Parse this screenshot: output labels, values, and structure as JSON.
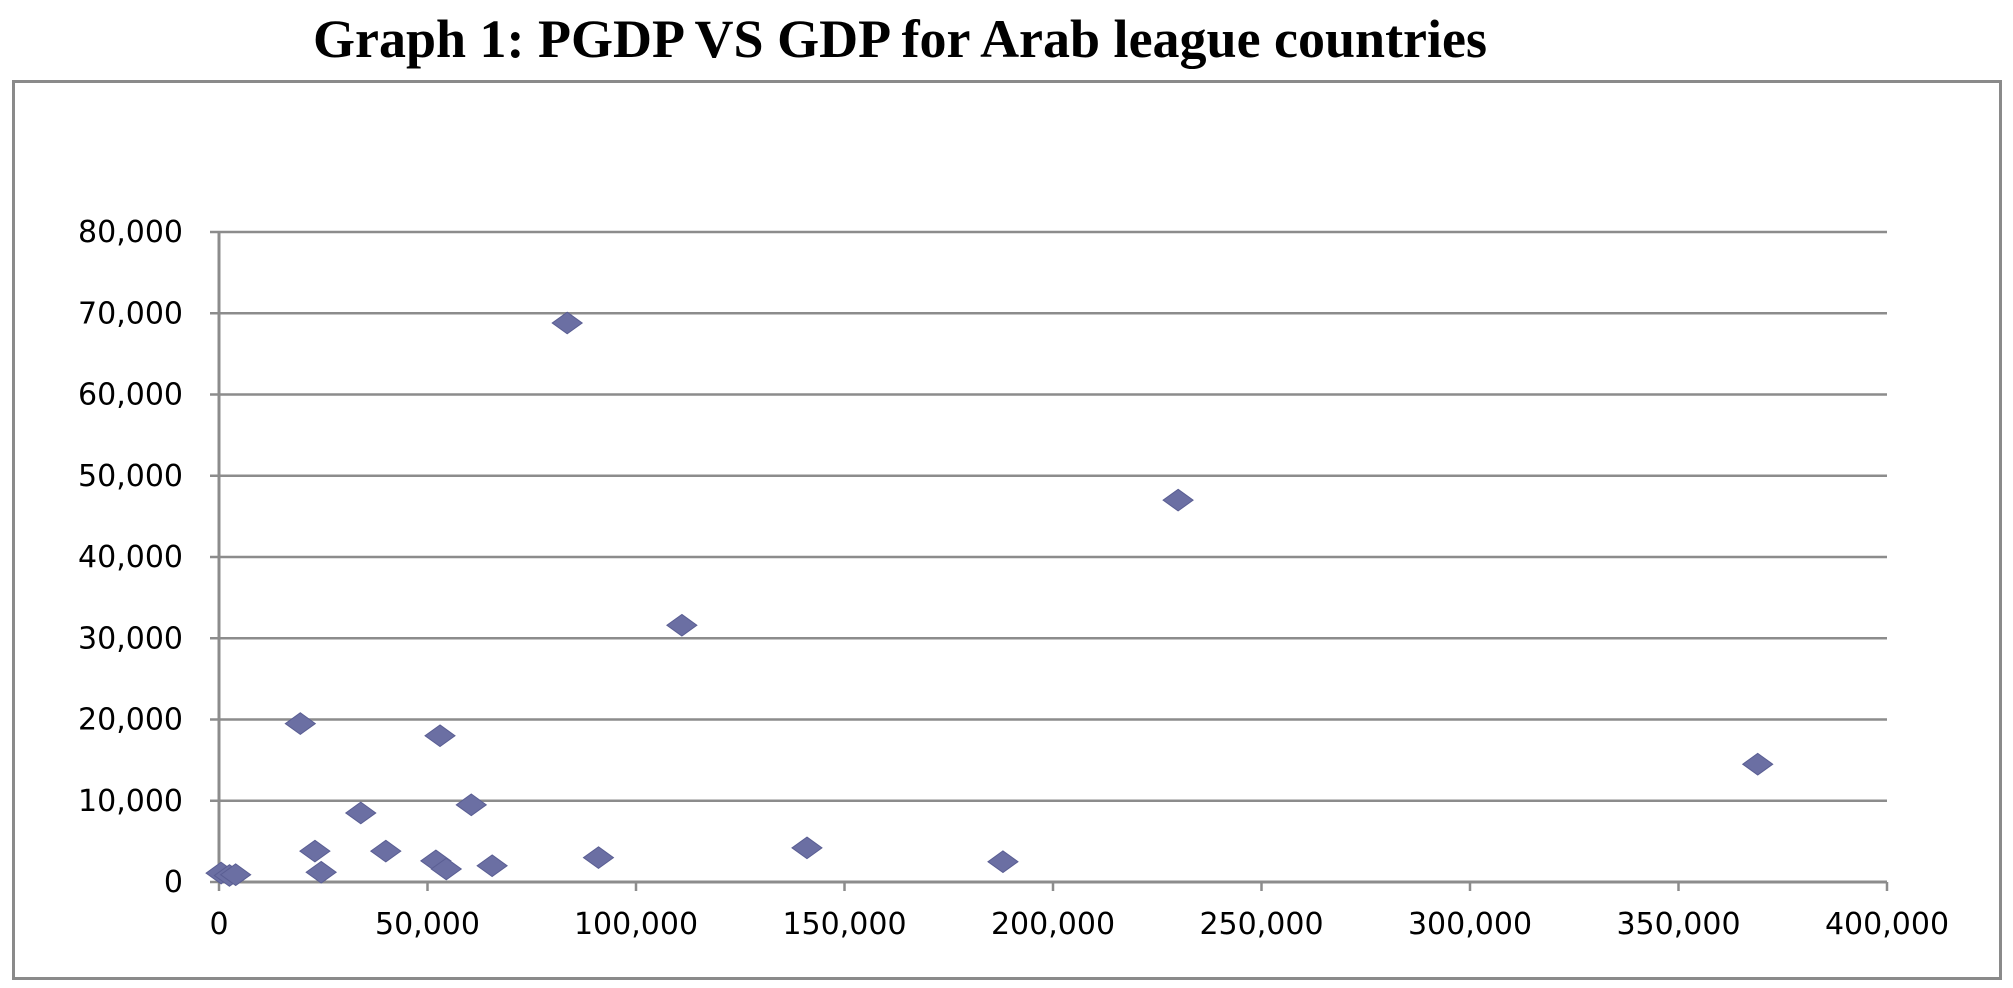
{
  "chart_data": {
    "type": "scatter",
    "title": "Graph 1: PGDP VS GDP for Arab league countries",
    "xlabel": "",
    "ylabel": "",
    "xlim": [
      0,
      400000
    ],
    "ylim": [
      0,
      80000
    ],
    "x_ticks": [
      0,
      50000,
      100000,
      150000,
      200000,
      250000,
      300000,
      350000,
      400000
    ],
    "y_ticks": [
      0,
      10000,
      20000,
      30000,
      40000,
      50000,
      60000,
      70000,
      80000
    ],
    "x_tick_labels": [
      "0",
      "50,000",
      "100,000",
      "150,000",
      "200,000",
      "250,000",
      "300,000",
      "350,000",
      "400,000"
    ],
    "y_tick_labels": [
      "0",
      "10,000",
      "20,000",
      "30,000",
      "40,000",
      "50,000",
      "60,000",
      "70,000",
      "80,000"
    ],
    "grid": "horizontal",
    "legend": "none",
    "marker": "diamond",
    "marker_color": "#6b6fa3",
    "points": [
      {
        "x": 500,
        "y": 1100
      },
      {
        "x": 2500,
        "y": 800
      },
      {
        "x": 4000,
        "y": 900
      },
      {
        "x": 19500,
        "y": 19500
      },
      {
        "x": 23000,
        "y": 3800
      },
      {
        "x": 24500,
        "y": 1200
      },
      {
        "x": 34000,
        "y": 8500
      },
      {
        "x": 40000,
        "y": 3800
      },
      {
        "x": 52000,
        "y": 2600
      },
      {
        "x": 53000,
        "y": 18000
      },
      {
        "x": 54500,
        "y": 1600
      },
      {
        "x": 60500,
        "y": 9500
      },
      {
        "x": 65500,
        "y": 2000
      },
      {
        "x": 83500,
        "y": 68800
      },
      {
        "x": 91000,
        "y": 3000
      },
      {
        "x": 111000,
        "y": 31600
      },
      {
        "x": 141000,
        "y": 4200
      },
      {
        "x": 188000,
        "y": 2500
      },
      {
        "x": 230000,
        "y": 47000
      },
      {
        "x": 369000,
        "y": 14500
      }
    ]
  }
}
